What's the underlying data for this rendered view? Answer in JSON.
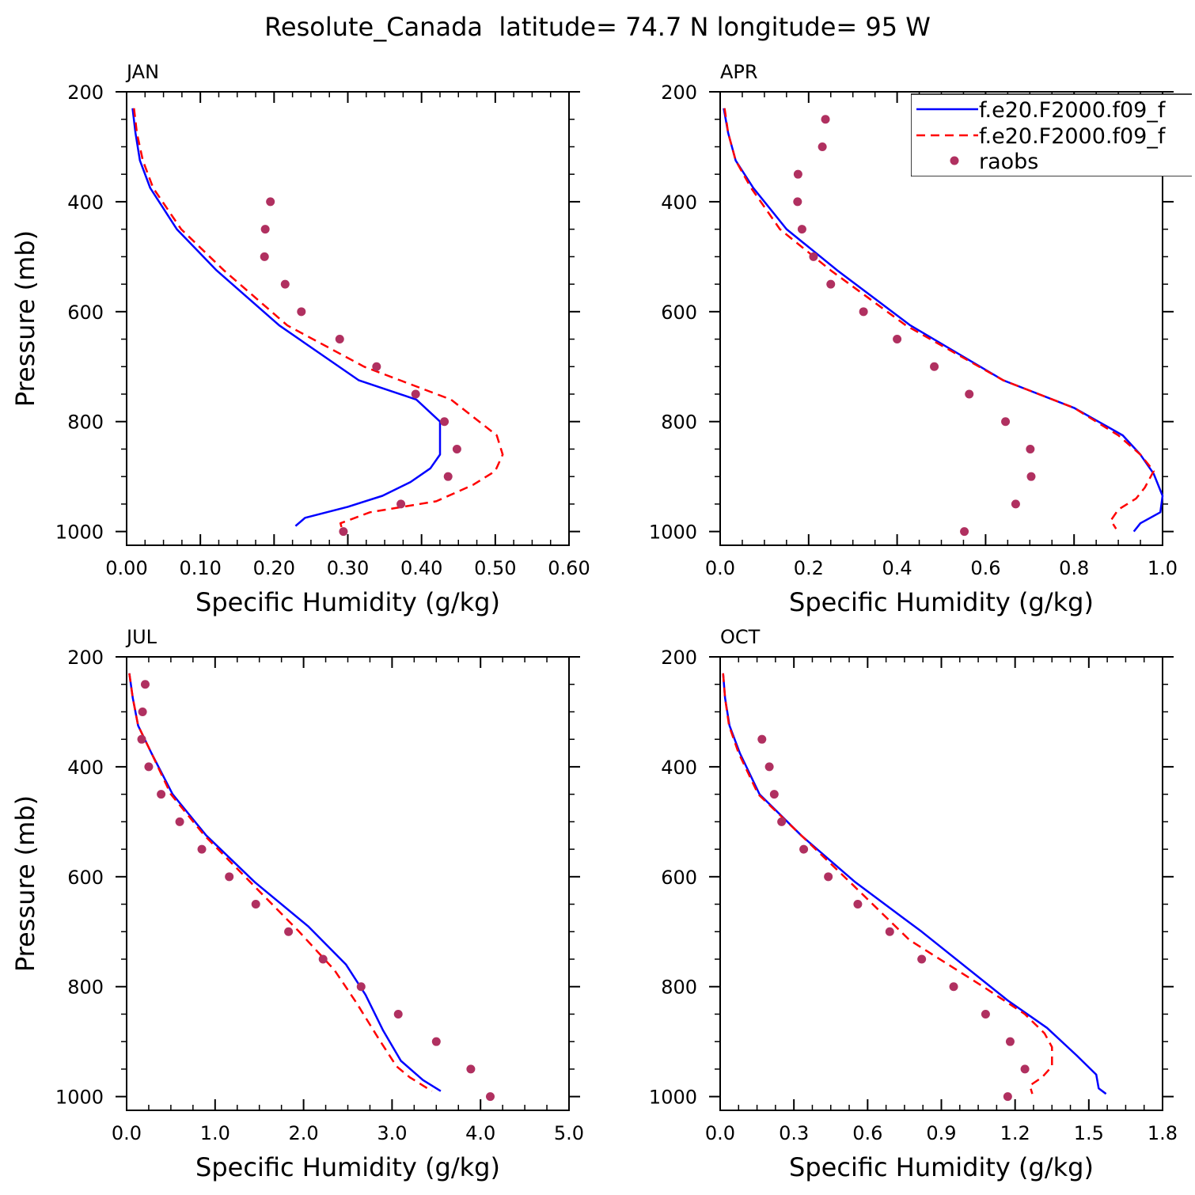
{
  "page_title": "Resolute_Canada  latitude= 74.7 N longitude= 95 W",
  "legend": {
    "placement": "top-right of APR panel",
    "entries": [
      {
        "label": "f.e20.F2000.f09_f",
        "style": "solid",
        "color": "#0000ff"
      },
      {
        "label": "f.e20.F2000.f09_f",
        "style": "dashed",
        "color": "#ff0000"
      },
      {
        "label": "raobs",
        "style": "dot",
        "color": "#b03060"
      }
    ]
  },
  "colors": {
    "model_solid": "#0000ff",
    "model_dashed": "#ff0000",
    "obs": "#b03060",
    "axes": "#000000"
  },
  "chart_data": [
    {
      "type": "line",
      "title": "JAN",
      "xlabel": "Specific Humidity (g/kg)",
      "ylabel": "Pressure (mb)",
      "xlim": [
        0,
        0.6
      ],
      "ylim": [
        200,
        1025
      ],
      "y_inverted": true,
      "xticks": [
        "0.00",
        "0.10",
        "0.20",
        "0.30",
        "0.40",
        "0.50",
        "0.60"
      ],
      "xtick_values": [
        0,
        0.1,
        0.2,
        0.3,
        0.4,
        0.5,
        0.6
      ],
      "yticks": [
        "200",
        "400",
        "600",
        "800",
        "1000"
      ],
      "ytick_values": [
        200,
        400,
        600,
        800,
        1000
      ],
      "series": [
        {
          "style": "solid",
          "color": "#0000ff",
          "x": [
            0.008,
            0.012,
            0.018,
            0.032,
            0.068,
            0.122,
            0.207,
            0.315,
            0.393,
            0.425,
            0.425,
            0.412,
            0.385,
            0.347,
            0.3,
            0.242,
            0.229
          ],
          "y": [
            230,
            275,
            325,
            375,
            450,
            525,
            625,
            725,
            760,
            800,
            860,
            885,
            910,
            935,
            955,
            975,
            990
          ]
        },
        {
          "style": "dashed",
          "color": "#ff0000",
          "x": [
            0.01,
            0.014,
            0.022,
            0.036,
            0.074,
            0.132,
            0.218,
            0.322,
            0.44,
            0.502,
            0.51,
            0.5,
            0.47,
            0.42,
            0.33,
            0.29,
            0.293
          ],
          "y": [
            230,
            275,
            325,
            375,
            450,
            525,
            625,
            700,
            760,
            825,
            860,
            890,
            915,
            945,
            965,
            985,
            1000
          ]
        }
      ],
      "points": {
        "name": "raobs",
        "x": [
          0.195,
          0.188,
          0.187,
          0.215,
          0.237,
          0.289,
          0.339,
          0.392,
          0.431,
          0.448,
          0.436,
          0.372,
          0.294
        ],
        "y": [
          400,
          450,
          500,
          550,
          600,
          650,
          700,
          750,
          800,
          850,
          900,
          950,
          1000
        ]
      }
    },
    {
      "type": "line",
      "title": "APR",
      "xlabel": "Specific Humidity (g/kg)",
      "ylabel": "",
      "xlim": [
        0,
        1.0
      ],
      "ylim": [
        200,
        1025
      ],
      "y_inverted": true,
      "xticks": [
        "0.0",
        "0.2",
        "0.4",
        "0.6",
        "0.8",
        "1.0"
      ],
      "xtick_values": [
        0,
        0.2,
        0.4,
        0.6,
        0.8,
        1.0
      ],
      "yticks": [
        "200",
        "400",
        "600",
        "800",
        "1000"
      ],
      "ytick_values": [
        200,
        400,
        600,
        800,
        1000
      ],
      "series": [
        {
          "style": "solid",
          "color": "#0000ff",
          "x": [
            0.008,
            0.018,
            0.035,
            0.075,
            0.15,
            0.265,
            0.43,
            0.64,
            0.8,
            0.91,
            0.95,
            0.98,
            1.0,
            0.995,
            0.95,
            0.935
          ],
          "y": [
            230,
            275,
            325,
            375,
            450,
            525,
            625,
            725,
            775,
            825,
            860,
            895,
            935,
            965,
            985,
            1000
          ]
        },
        {
          "style": "dashed",
          "color": "#ff0000",
          "x": [
            0.01,
            0.018,
            0.035,
            0.07,
            0.135,
            0.25,
            0.42,
            0.64,
            0.8,
            0.9,
            0.95,
            0.98,
            0.96,
            0.94,
            0.9,
            0.883,
            0.895
          ],
          "y": [
            230,
            275,
            325,
            375,
            450,
            525,
            625,
            725,
            775,
            825,
            860,
            890,
            920,
            940,
            960,
            980,
            995
          ]
        }
      ],
      "points": {
        "name": "raobs",
        "x": [
          0.238,
          0.231,
          0.176,
          0.175,
          0.185,
          0.211,
          0.25,
          0.324,
          0.4,
          0.484,
          0.563,
          0.645,
          0.701,
          0.703,
          0.668,
          0.552
        ],
        "y": [
          250,
          300,
          350,
          400,
          450,
          500,
          550,
          600,
          650,
          700,
          750,
          800,
          850,
          900,
          950,
          1000
        ]
      }
    },
    {
      "type": "line",
      "title": "JUL",
      "xlabel": "Specific Humidity (g/kg)",
      "ylabel": "Pressure (mb)",
      "xlim": [
        0,
        5.0
      ],
      "ylim": [
        200,
        1025
      ],
      "y_inverted": true,
      "xticks": [
        "0.0",
        "1.0",
        "2.0",
        "3.0",
        "4.0",
        "5.0"
      ],
      "xtick_values": [
        0,
        1,
        2,
        3,
        4,
        5
      ],
      "yticks": [
        "200",
        "400",
        "600",
        "800",
        "1000"
      ],
      "ytick_values": [
        200,
        400,
        600,
        800,
        1000
      ],
      "series": [
        {
          "style": "solid",
          "color": "#0000ff",
          "x": [
            0.03,
            0.07,
            0.13,
            0.28,
            0.52,
            0.9,
            1.45,
            2.05,
            2.48,
            2.7,
            2.9,
            3.1,
            3.35,
            3.55
          ],
          "y": [
            230,
            275,
            325,
            375,
            450,
            525,
            610,
            690,
            760,
            815,
            880,
            935,
            970,
            990
          ]
        },
        {
          "style": "dashed",
          "color": "#ff0000",
          "x": [
            0.03,
            0.07,
            0.13,
            0.28,
            0.5,
            0.88,
            1.4,
            1.95,
            2.35,
            2.6,
            2.85,
            3.05,
            3.2,
            3.45
          ],
          "y": [
            230,
            275,
            325,
            375,
            450,
            525,
            610,
            700,
            770,
            830,
            895,
            945,
            965,
            990
          ]
        }
      ],
      "points": {
        "name": "raobs",
        "x": [
          0.21,
          0.18,
          0.17,
          0.25,
          0.39,
          0.6,
          0.85,
          1.16,
          1.46,
          1.83,
          2.22,
          2.65,
          3.07,
          3.5,
          3.89,
          4.11
        ],
        "y": [
          250,
          300,
          350,
          400,
          450,
          500,
          550,
          600,
          650,
          700,
          750,
          800,
          850,
          900,
          950,
          1000
        ]
      }
    },
    {
      "type": "line",
      "title": "OCT",
      "xlabel": "Specific Humidity (g/kg)",
      "ylabel": "",
      "xlim": [
        0,
        1.8
      ],
      "ylim": [
        200,
        1025
      ],
      "y_inverted": true,
      "xticks": [
        "0.0",
        "0.3",
        "0.6",
        "0.9",
        "1.2",
        "1.5",
        "1.8"
      ],
      "xtick_values": [
        0,
        0.3,
        0.6,
        0.9,
        1.2,
        1.5,
        1.8
      ],
      "yticks": [
        "200",
        "400",
        "600",
        "800",
        "1000"
      ],
      "ytick_values": [
        200,
        400,
        600,
        800,
        1000
      ],
      "series": [
        {
          "style": "solid",
          "color": "#0000ff",
          "x": [
            0.012,
            0.02,
            0.038,
            0.08,
            0.16,
            0.33,
            0.55,
            0.82,
            1.17,
            1.33,
            1.45,
            1.53,
            1.54,
            1.57
          ],
          "y": [
            230,
            275,
            325,
            375,
            450,
            525,
            610,
            700,
            825,
            875,
            925,
            960,
            985,
            995
          ]
        },
        {
          "style": "dashed",
          "color": "#ff0000",
          "x": [
            0.012,
            0.02,
            0.036,
            0.075,
            0.155,
            0.33,
            0.54,
            0.77,
            1.07,
            1.24,
            1.32,
            1.35,
            1.35,
            1.31,
            1.26,
            1.27
          ],
          "y": [
            230,
            275,
            325,
            375,
            450,
            525,
            615,
            715,
            800,
            850,
            885,
            910,
            945,
            965,
            980,
            995
          ]
        }
      ],
      "points": {
        "name": "raobs",
        "x": [
          0.17,
          0.2,
          0.22,
          0.25,
          0.34,
          0.44,
          0.56,
          0.69,
          0.82,
          0.95,
          1.08,
          1.18,
          1.24,
          1.17
        ],
        "y": [
          350,
          400,
          450,
          500,
          550,
          600,
          650,
          700,
          750,
          800,
          850,
          900,
          950,
          1000
        ]
      }
    }
  ]
}
